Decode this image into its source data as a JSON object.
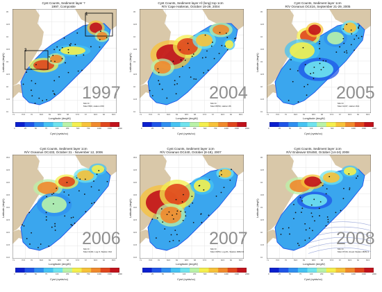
{
  "colorbar_colors": [
    "#0b1fcf",
    "#1f55e8",
    "#2f8ff0",
    "#46c3f3",
    "#6fe3ee",
    "#b9f2a8",
    "#f4ef4e",
    "#f7c23a",
    "#f08a2c",
    "#e0471d",
    "#c1121b"
  ],
  "colorbar_ticks": [
    "0",
    "25",
    "50",
    "75",
    "100",
    "250",
    "500",
    "750",
    "1000",
    "1500",
    "2000"
  ],
  "panels": [
    {
      "year": "1997",
      "title1": "Cyst Counts, Sediment layer ?",
      "title2": "1997, Composite",
      "xlabel": "Longitude (degW)",
      "ylabel": "Latitude (degN)",
      "cbar_label": "Cyst (cysts/cc)",
      "note1": "Min=0",
      "note2": "Max=560, station #30",
      "box_labels": [
        "1",
        "2"
      ],
      "xticks": [
        "71",
        "70.5",
        "70",
        "69.5",
        "69",
        "68.5",
        "68",
        "67.5",
        "67",
        "66.5",
        "66",
        "65.5"
      ],
      "yticks": [
        "45",
        "44.5",
        "44",
        "43.5",
        "43",
        "42.5",
        "42",
        "41.5",
        "41"
      ]
    },
    {
      "year": "2004",
      "title1": "Cyst Counts, Sediment layer Af (long) top 1cm",
      "title2": "R/V Cape Hatteras, October 19-29, 2004",
      "xlabel": "Longitude (degW)",
      "ylabel": "Latitude (degN)",
      "cbar_label": "Cyst (cysts/cc)",
      "note1": "Min=0",
      "note2": "Max=6550, station #6",
      "xticks": [
        "71",
        "70.5",
        "70",
        "69.5",
        "69",
        "68.5",
        "68",
        "67.5",
        "67",
        "66.5",
        "66",
        "65.5"
      ],
      "yticks": [
        "45",
        "44.5",
        "44",
        "43.5",
        "43",
        "42.5",
        "42",
        "41.5",
        "41"
      ]
    },
    {
      "year": "2005",
      "title1": "Cyst Counts, Sediment layer 1cm",
      "title2": "R/V Oceanus OC416, September 21-29, 2005",
      "xlabel": "Longitude (degW)",
      "ylabel": "Latitude (degN)",
      "cbar_label": "Cyst (cysts/cc)",
      "note1": "Min=0",
      "note2": "Max=1437, station #14",
      "xticks": [
        "71",
        "70.5",
        "70",
        "69.5",
        "69",
        "68.5",
        "68",
        "67.5",
        "67",
        "66.5",
        "66",
        "65.5"
      ],
      "yticks": [
        "45",
        "44.5",
        "44",
        "43.5",
        "43",
        "42.5",
        "42",
        "41.5",
        "41"
      ]
    },
    {
      "year": "2006",
      "title1": "Cyst Counts, Sediment layer 1cm",
      "title2": "R/V Oceanus OC433, October 31 - November 12, 2006",
      "xlabel": "Longitude (degW)",
      "ylabel": "Latitude (degN)",
      "cbar_label": "Cyst (cysts/cc)",
      "note1": "Min=0",
      "note2": "Max=1100, Log #, Station #12",
      "xticks": [
        "71",
        "70.5",
        "70",
        "69.5",
        "69",
        "68.5",
        "68",
        "67.5",
        "67",
        "66.5",
        "66",
        "65.5"
      ],
      "yticks": [
        "45.0",
        "44.5",
        "44.0",
        "43.5",
        "43.0",
        "42.5",
        "42.0",
        "41.5",
        "41.0"
      ]
    },
    {
      "year": "2007",
      "title1": "Cyst Counts, Sediment layer 1cm",
      "title2": "R/V Oceanus OC440, October (8-18), 2007",
      "xlabel": "Longitude (degW)",
      "ylabel": "Latitude (degN)",
      "cbar_label": "Cyst (cysts/cc)",
      "note1": "Min=0",
      "note2": "Max=3353, Log #1, Station #MM-8",
      "xticks": [
        "71",
        "70.5",
        "70",
        "69.5",
        "69",
        "68.5",
        "68",
        "67.5",
        "67",
        "66.5",
        "66",
        "65.5"
      ],
      "yticks": [
        "45.0",
        "44.5",
        "44.0",
        "43.5",
        "43.0",
        "42.5",
        "42.0",
        "41.5",
        "41.0"
      ]
    },
    {
      "year": "2008",
      "title1": "Cyst Counts, Sediment layer 1cm",
      "title2": "R/V Endeavor EN450, October (14-24) 2008",
      "xlabel": "Longitude (degW)",
      "ylabel": "Latitude (degN)",
      "cbar_label": "Cyst (cysts/cc)",
      "note1": "Min=0",
      "note2": "Max=3743, Area1 Station #MM-1",
      "xticks": [
        "71",
        "70.5",
        "70",
        "69.5",
        "69",
        "68.5",
        "68",
        "67.5",
        "67",
        "66.5",
        "66",
        "65.5"
      ],
      "yticks": [
        "45",
        "44.5",
        "44",
        "43.5",
        "43",
        "42.5",
        "42",
        "41.5",
        "41"
      ]
    }
  ]
}
